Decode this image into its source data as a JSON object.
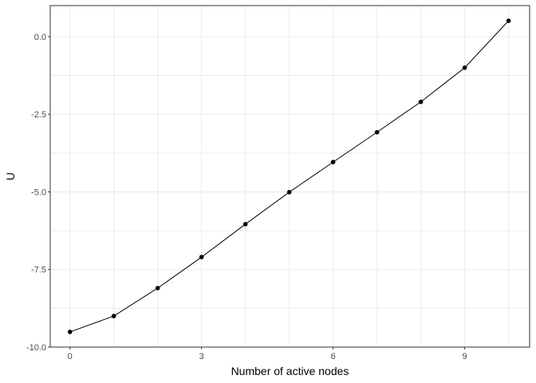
{
  "chart_data": {
    "type": "line",
    "title": "",
    "xlabel": "Number of active nodes",
    "ylabel": "U",
    "x": [
      0,
      1,
      2,
      3,
      4,
      5,
      6,
      7,
      8,
      9,
      10
    ],
    "series": [
      {
        "values": [
          -9.51,
          -9.0,
          -8.1,
          -7.1,
          -6.04,
          -5.01,
          -4.04,
          -3.08,
          -2.1,
          -1.0,
          0.51
        ]
      }
    ],
    "xlim": [
      -0.45,
      10.48
    ],
    "ylim": [
      -10.0,
      1.0
    ],
    "xticks": [
      0,
      3,
      6,
      9
    ],
    "xtick_labels": [
      "0",
      "3",
      "6",
      "9"
    ],
    "yticks": [
      0.0,
      -2.5,
      -5.0,
      -7.5,
      -10.0
    ],
    "ytick_labels": [
      "0.0",
      "-2.5",
      "-5.0",
      "-7.5",
      "-10.0"
    ],
    "grid": true,
    "markers": true,
    "colors": {
      "line": "#000000",
      "grid": "#ebebeb",
      "panel_border": "#333333"
    }
  }
}
